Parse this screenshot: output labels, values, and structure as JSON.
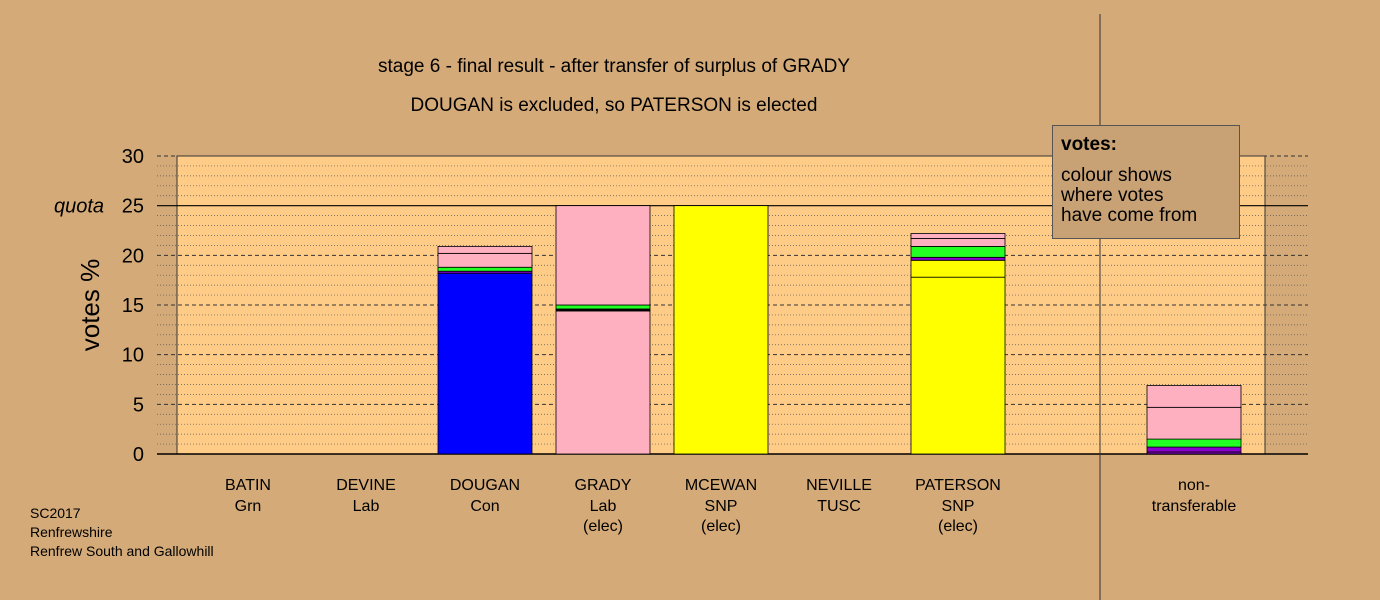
{
  "chart_data": {
    "type": "bar",
    "stacked": true,
    "title": "stage 6 - final result - after transfer of surplus of GRADY",
    "subtitle": "DOUGAN is excluded, so PATERSON is elected",
    "ylabel": "votes %",
    "ylim": [
      0,
      30
    ],
    "yticks": [
      "0",
      "5",
      "10",
      "15",
      "20",
      "25",
      "30"
    ],
    "quota": {
      "label": "quota",
      "value": 25
    },
    "grid": true,
    "categories": [
      {
        "name": "BATIN",
        "party": "Grn",
        "status": ""
      },
      {
        "name": "DEVINE",
        "party": "Lab",
        "status": ""
      },
      {
        "name": "DOUGAN",
        "party": "Con",
        "status": ""
      },
      {
        "name": "GRADY",
        "party": "Lab",
        "status": "(elec)"
      },
      {
        "name": "MCEWAN",
        "party": "SNP",
        "status": "(elec)"
      },
      {
        "name": "NEVILLE",
        "party": "TUSC",
        "status": ""
      },
      {
        "name": "PATERSON",
        "party": "SNP",
        "status": "(elec)"
      },
      {
        "name": "non-",
        "party": "transferable",
        "status": ""
      }
    ],
    "stacks": [
      [],
      [],
      [
        {
          "value": 18.2,
          "color": "#0000ff"
        },
        {
          "value": 0.2,
          "color": "#8800cc"
        },
        {
          "value": 0.4,
          "color": "#22ff22"
        },
        {
          "value": 1.4,
          "color": "#ffb0c0"
        },
        {
          "value": 0.7,
          "color": "#ffb0c0"
        }
      ],
      [
        {
          "value": 14.4,
          "color": "#ffb0c0"
        },
        {
          "value": 0.2,
          "color": "#000000"
        },
        {
          "value": 0.4,
          "color": "#22ff22"
        },
        {
          "value": 10.0,
          "color": "#ffb0c0"
        }
      ],
      [
        {
          "value": 25.0,
          "color": "#ffff00"
        }
      ],
      [],
      [
        {
          "value": 17.8,
          "color": "#ffff00"
        },
        {
          "value": 1.7,
          "color": "#ffff00"
        },
        {
          "value": 0.3,
          "color": "#8800cc"
        },
        {
          "value": 1.1,
          "color": "#22ff22"
        },
        {
          "value": 0.8,
          "color": "#ffb0c0"
        },
        {
          "value": 0.5,
          "color": "#ffb0c0"
        }
      ],
      [
        {
          "value": 0.2,
          "color": "#8800cc"
        },
        {
          "value": 0.5,
          "color": "#8800cc"
        },
        {
          "value": 0.8,
          "color": "#22ff22"
        },
        {
          "value": 3.2,
          "color": "#ffb0c0"
        },
        {
          "value": 2.2,
          "color": "#ffb0c0"
        }
      ]
    ]
  },
  "legend": {
    "title": "votes:",
    "lines": [
      "colour shows",
      "where votes",
      "have come from"
    ]
  },
  "footer": {
    "line1": "SC2017",
    "line2": "Renfrewshire",
    "line3": "Renfrew South and Gallowhill"
  },
  "colors": {
    "background": "#d4aa78",
    "plot_background": "#ffcc88"
  }
}
